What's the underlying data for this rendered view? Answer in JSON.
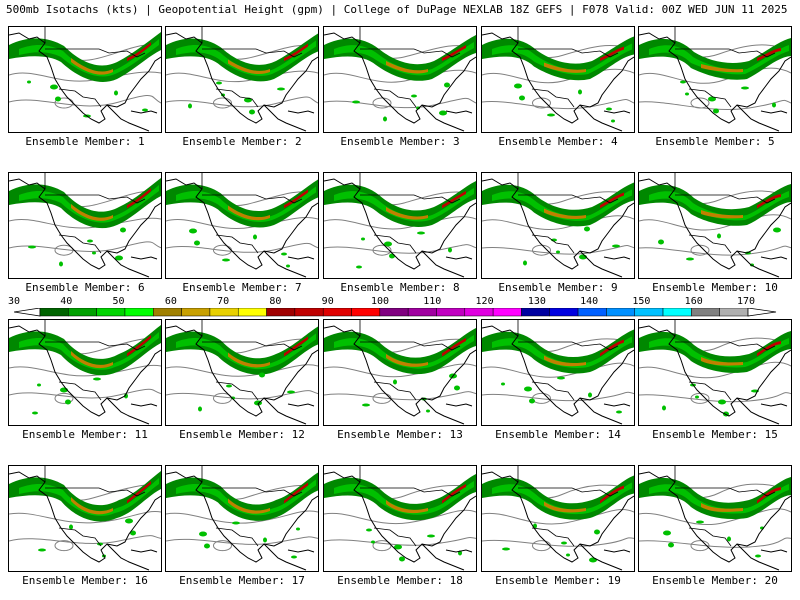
{
  "title": "500mb Isotachs (kts) | Geopotential Height (gpm) | College of DuPage NEXLAB   18Z GEFS | F078 Valid: 00Z WED JUN 11 2025",
  "members": [
    "Ensemble Member: 1",
    "Ensemble Member: 2",
    "Ensemble Member: 3",
    "Ensemble Member: 4",
    "Ensemble Member: 5",
    "Ensemble Member: 6",
    "Ensemble Member: 7",
    "Ensemble Member: 8",
    "Ensemble Member: 9",
    "Ensemble Member: 10",
    "Ensemble Member: 11",
    "Ensemble Member: 12",
    "Ensemble Member: 13",
    "Ensemble Member: 14",
    "Ensemble Member: 15",
    "Ensemble Member: 16",
    "Ensemble Member: 17",
    "Ensemble Member: 18",
    "Ensemble Member: 19",
    "Ensemble Member: 20"
  ],
  "colorbar": {
    "labels": [
      "30",
      "40",
      "50",
      "60",
      "70",
      "80",
      "90",
      "100",
      "110",
      "120",
      "130",
      "140",
      "150",
      "160",
      "170"
    ],
    "colors": [
      "#006400",
      "#00a000",
      "#00d400",
      "#00ff00",
      "#a08000",
      "#c8a000",
      "#e8d000",
      "#ffff00",
      "#a00000",
      "#c00000",
      "#e00000",
      "#ff0000",
      "#800080",
      "#a000a0",
      "#c000c0",
      "#e000e0",
      "#ff00ff",
      "#0000a0",
      "#0000e0",
      "#0060ff",
      "#0090ff",
      "#00c0ff",
      "#00ffff",
      "#808080",
      "#b0b0b0"
    ]
  },
  "colors": {
    "jet_low": "#008800",
    "jet_mid": "#00c000",
    "jet_core": "#c08000",
    "jet_max": "#c00000",
    "height_contour": "#808080",
    "coast": "#000000"
  }
}
